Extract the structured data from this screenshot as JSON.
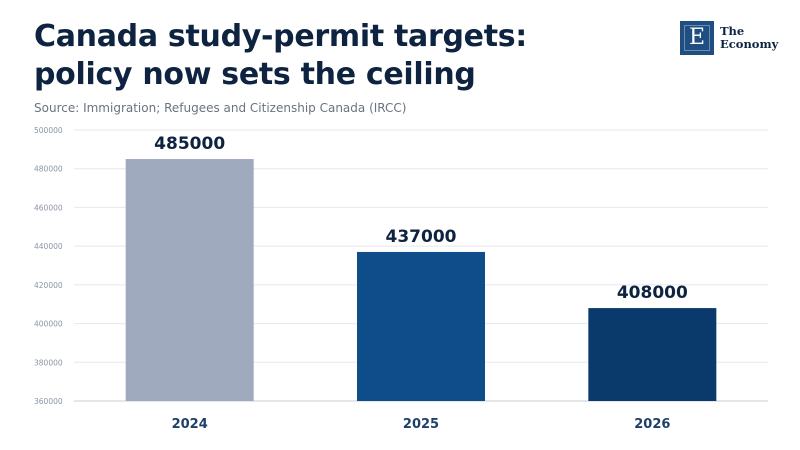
{
  "header": {
    "title": "Canada study-permit targets: policy now sets the ceiling",
    "source": "Source: Immigration; Refugees and Citizenship Canada (IRCC)"
  },
  "logo": {
    "mark": "E",
    "line1": "The",
    "line2": "Economy"
  },
  "chart_data": {
    "type": "bar",
    "title": "Canada study-permit targets: policy now sets the ceiling",
    "categories": [
      "2024",
      "2025",
      "2026"
    ],
    "values": [
      485000,
      437000,
      408000
    ],
    "value_labels": [
      "485000",
      "437000",
      "408000"
    ],
    "colors": [
      "#a0aabe",
      "#0f4c8a",
      "#0a3a6b"
    ],
    "ylim": [
      360000,
      500000
    ],
    "yticks": [
      360000,
      380000,
      400000,
      420000,
      440000,
      460000,
      480000,
      500000
    ],
    "ytick_labels": [
      "360000",
      "380000",
      "400000",
      "420000",
      "440000",
      "460000",
      "480000",
      "500000"
    ],
    "xlabel": "",
    "ylabel": "",
    "grid": true,
    "legend": "none"
  }
}
